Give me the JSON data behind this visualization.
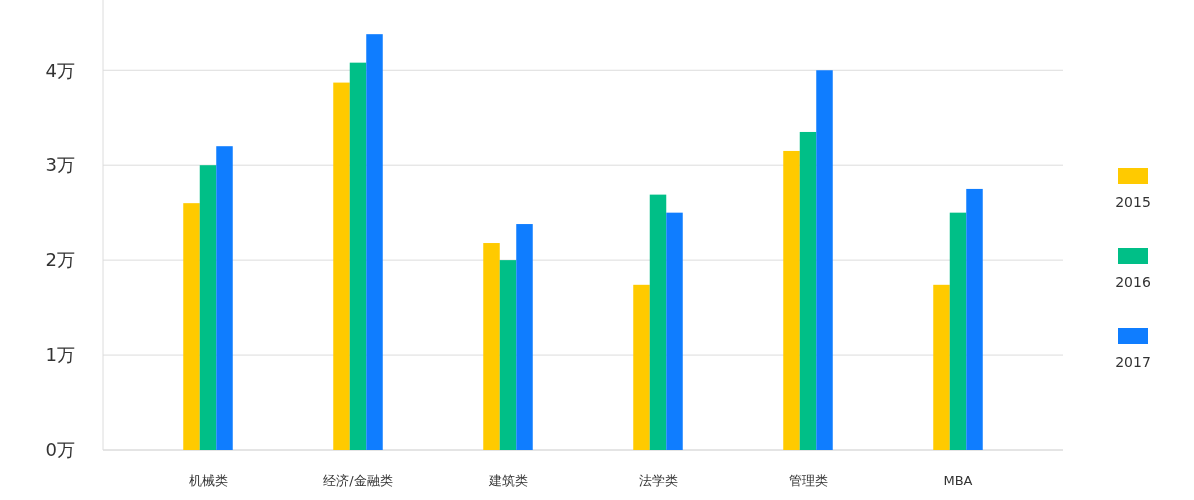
{
  "chart_data": {
    "type": "bar",
    "categories": [
      "机械类",
      "经济/金融类",
      "建筑类",
      "法学类",
      "管理类",
      "MBA"
    ],
    "series": [
      {
        "name": "2015",
        "color": "#ffca00",
        "values": [
          2.6,
          3.87,
          2.18,
          1.74,
          3.15,
          1.74
        ]
      },
      {
        "name": "2016",
        "color": "#00bf87",
        "values": [
          3.0,
          4.08,
          2.0,
          2.69,
          3.35,
          2.5
        ]
      },
      {
        "name": "2017",
        "color": "#0f7dff",
        "values": [
          3.2,
          4.38,
          2.38,
          2.5,
          4.0,
          2.75
        ]
      }
    ],
    "ylim": [
      0,
      4.74
    ],
    "yticks": [
      {
        "value": 0,
        "label": "0万"
      },
      {
        "value": 1,
        "label": "1万"
      },
      {
        "value": 2,
        "label": "2万"
      },
      {
        "value": 3,
        "label": "3万"
      },
      {
        "value": 4,
        "label": "4万"
      }
    ],
    "grid": "y",
    "legend": "right"
  }
}
